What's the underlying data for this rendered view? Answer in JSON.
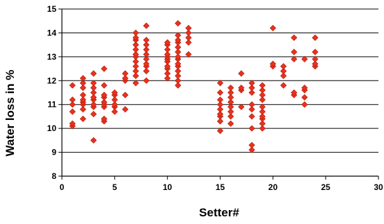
{
  "chart_data": {
    "type": "scatter",
    "xlabel": "Setter#",
    "ylabel": "Water loss in %",
    "xlim": [
      0,
      30
    ],
    "ylim": [
      8,
      15
    ],
    "x_ticks": [
      0,
      5,
      10,
      15,
      20,
      25,
      30
    ],
    "y_ticks": [
      8,
      9,
      10,
      11,
      12,
      13,
      14,
      15
    ],
    "grid": "horizontal",
    "marker": "diamond",
    "marker_color": "#e8321e",
    "marker_edge_color": "#b01808",
    "series": [
      {
        "points": [
          [
            1,
            10.1
          ],
          [
            1,
            10.2
          ],
          [
            1,
            10.7
          ],
          [
            1,
            11.0
          ],
          [
            1,
            11.2
          ],
          [
            1,
            11.8
          ],
          [
            2,
            10.4
          ],
          [
            2,
            10.8
          ],
          [
            2,
            11.0
          ],
          [
            2,
            11.1
          ],
          [
            2,
            11.2
          ],
          [
            2,
            11.4
          ],
          [
            2,
            11.7
          ],
          [
            2,
            11.9
          ],
          [
            2,
            12.1
          ],
          [
            3,
            9.5
          ],
          [
            3,
            10.6
          ],
          [
            3,
            10.9
          ],
          [
            3,
            11.0
          ],
          [
            3,
            11.2
          ],
          [
            3,
            11.3
          ],
          [
            3,
            11.5
          ],
          [
            3,
            11.7
          ],
          [
            3,
            11.9
          ],
          [
            3,
            12.3
          ],
          [
            4,
            10.3
          ],
          [
            4,
            10.4
          ],
          [
            4,
            10.9
          ],
          [
            4,
            11.0
          ],
          [
            4,
            11.1
          ],
          [
            4,
            11.3
          ],
          [
            4,
            11.4
          ],
          [
            4,
            11.8
          ],
          [
            4,
            12.5
          ],
          [
            5,
            10.7
          ],
          [
            5,
            10.9
          ],
          [
            5,
            11.0
          ],
          [
            5,
            11.2
          ],
          [
            5,
            11.4
          ],
          [
            5,
            11.5
          ],
          [
            6,
            10.8
          ],
          [
            6,
            11.4
          ],
          [
            6,
            12.0
          ],
          [
            6,
            12.1
          ],
          [
            6,
            12.3
          ],
          [
            7,
            11.9
          ],
          [
            7,
            12.2
          ],
          [
            7,
            12.4
          ],
          [
            7,
            12.6
          ],
          [
            7,
            12.8
          ],
          [
            7,
            13.0
          ],
          [
            7,
            13.1
          ],
          [
            7,
            13.3
          ],
          [
            7,
            13.5
          ],
          [
            7,
            13.7
          ],
          [
            7,
            13.8
          ],
          [
            7,
            14.0
          ],
          [
            8,
            12.0
          ],
          [
            8,
            12.4
          ],
          [
            8,
            12.6
          ],
          [
            8,
            12.7
          ],
          [
            8,
            12.9
          ],
          [
            8,
            13.1
          ],
          [
            8,
            13.3
          ],
          [
            8,
            13.5
          ],
          [
            8,
            13.7
          ],
          [
            8,
            14.3
          ],
          [
            10,
            12.1
          ],
          [
            10,
            12.3
          ],
          [
            10,
            12.5
          ],
          [
            10,
            12.6
          ],
          [
            10,
            12.8
          ],
          [
            10,
            12.9
          ],
          [
            10,
            13.0
          ],
          [
            10,
            13.1
          ],
          [
            10,
            13.3
          ],
          [
            10,
            13.5
          ],
          [
            10,
            13.6
          ],
          [
            11,
            11.8
          ],
          [
            11,
            12.0
          ],
          [
            11,
            12.2
          ],
          [
            11,
            12.4
          ],
          [
            11,
            12.6
          ],
          [
            11,
            12.7
          ],
          [
            11,
            12.9
          ],
          [
            11,
            13.0
          ],
          [
            11,
            13.2
          ],
          [
            11,
            13.4
          ],
          [
            11,
            13.6
          ],
          [
            11,
            13.7
          ],
          [
            11,
            13.9
          ],
          [
            11,
            14.4
          ],
          [
            12,
            13.1
          ],
          [
            12,
            13.6
          ],
          [
            12,
            13.8
          ],
          [
            12,
            14.0
          ],
          [
            12,
            14.2
          ],
          [
            15,
            9.9
          ],
          [
            15,
            10.3
          ],
          [
            15,
            10.5
          ],
          [
            15,
            10.6
          ],
          [
            15,
            10.8
          ],
          [
            15,
            11.0
          ],
          [
            15,
            11.2
          ],
          [
            15,
            11.5
          ],
          [
            15,
            11.9
          ],
          [
            16,
            10.2
          ],
          [
            16,
            10.5
          ],
          [
            16,
            10.7
          ],
          [
            16,
            10.9
          ],
          [
            16,
            11.1
          ],
          [
            16,
            11.3
          ],
          [
            16,
            11.5
          ],
          [
            16,
            11.7
          ],
          [
            17,
            10.9
          ],
          [
            17,
            11.6
          ],
          [
            17,
            11.7
          ],
          [
            17,
            12.3
          ],
          [
            18,
            9.1
          ],
          [
            18,
            9.3
          ],
          [
            18,
            10.0
          ],
          [
            18,
            10.5
          ],
          [
            18,
            10.8
          ],
          [
            18,
            11.0
          ],
          [
            18,
            11.5
          ],
          [
            18,
            11.7
          ],
          [
            18,
            11.9
          ],
          [
            19,
            10.0
          ],
          [
            19,
            10.2
          ],
          [
            19,
            10.4
          ],
          [
            19,
            10.5
          ],
          [
            19,
            10.7
          ],
          [
            19,
            10.9
          ],
          [
            19,
            11.2
          ],
          [
            19,
            11.4
          ],
          [
            19,
            11.6
          ],
          [
            19,
            11.8
          ],
          [
            20,
            12.6
          ],
          [
            20,
            12.7
          ],
          [
            20,
            14.2
          ],
          [
            21,
            11.8
          ],
          [
            21,
            12.2
          ],
          [
            21,
            12.4
          ],
          [
            21,
            12.6
          ],
          [
            22,
            11.4
          ],
          [
            22,
            11.5
          ],
          [
            22,
            12.9
          ],
          [
            22,
            13.2
          ],
          [
            22,
            13.8
          ],
          [
            23,
            11.0
          ],
          [
            23,
            11.3
          ],
          [
            23,
            11.6
          ],
          [
            23,
            11.7
          ],
          [
            23,
            12.9
          ],
          [
            24,
            12.6
          ],
          [
            24,
            12.7
          ],
          [
            24,
            12.9
          ],
          [
            24,
            13.2
          ],
          [
            24,
            13.8
          ]
        ]
      }
    ]
  }
}
